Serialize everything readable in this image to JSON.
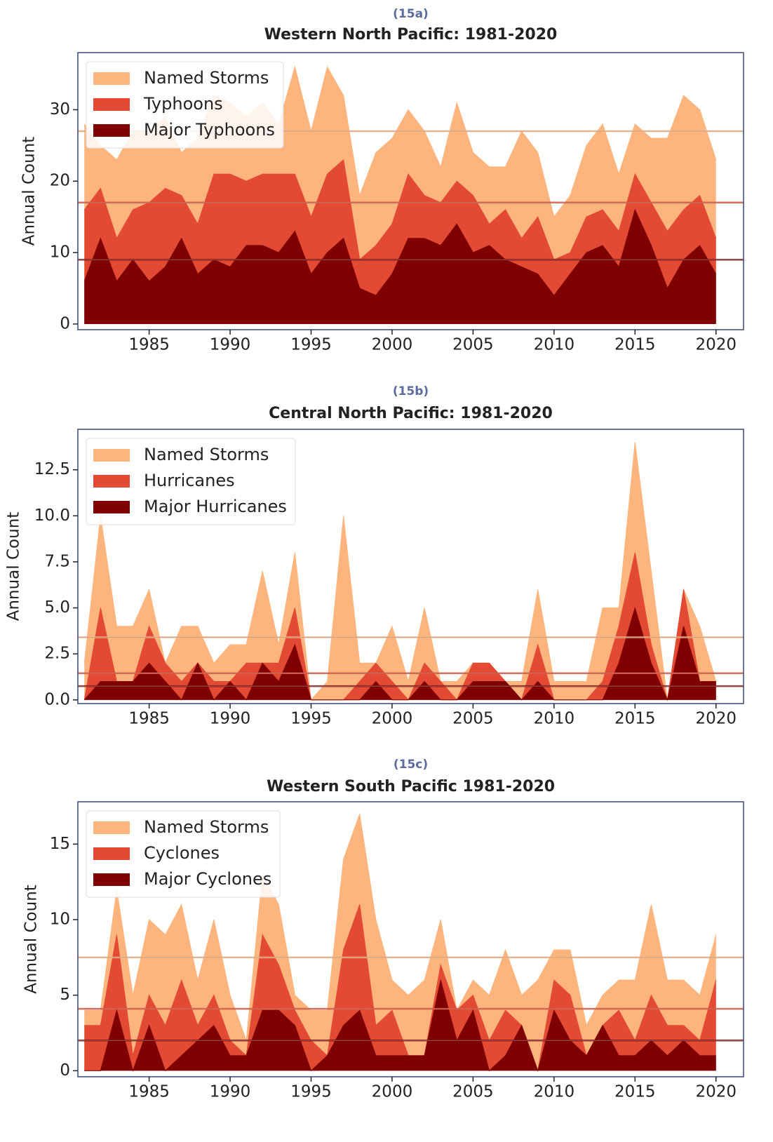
{
  "chart_data": [
    {
      "type": "area",
      "label": "(15a)",
      "title": "Western North Pacific: 1981-2020",
      "ylabel": "Annual Count",
      "legend": "upper left",
      "x": [
        1981,
        1982,
        1983,
        1984,
        1985,
        1986,
        1987,
        1988,
        1989,
        1990,
        1991,
        1992,
        1993,
        1994,
        1995,
        1996,
        1997,
        1998,
        1999,
        2000,
        2001,
        2002,
        2003,
        2004,
        2005,
        2006,
        2007,
        2008,
        2009,
        2010,
        2011,
        2012,
        2013,
        2014,
        2015,
        2016,
        2017,
        2018,
        2019,
        2020
      ],
      "xlim": [
        1980.6,
        2021.7
      ],
      "xticks": [
        1985,
        1990,
        1995,
        2000,
        2005,
        2010,
        2015,
        2020
      ],
      "ylim": [
        -0.8,
        38
      ],
      "yticks": [
        0,
        10,
        20,
        30
      ],
      "series": [
        {
          "name": "Named Storms",
          "color": "#fdb47d",
          "mean": 27,
          "values": [
            28,
            25,
            23,
            27,
            27,
            29,
            24,
            26,
            32,
            31,
            29,
            31,
            28,
            36,
            27,
            36,
            32,
            18,
            24,
            26,
            30,
            27,
            22,
            31,
            24,
            22,
            22,
            27,
            24,
            15,
            18,
            25,
            28,
            21,
            28,
            26,
            26,
            32,
            30,
            23
          ]
        },
        {
          "name": "Typhoons",
          "color": "#e34a33",
          "mean": 17,
          "values": [
            16,
            19,
            12,
            16,
            17,
            19,
            18,
            14,
            21,
            21,
            20,
            21,
            21,
            21,
            15,
            21,
            23,
            9,
            11,
            14,
            21,
            18,
            17,
            20,
            18,
            14,
            16,
            12,
            15,
            9,
            10,
            15,
            16,
            13,
            21,
            17,
            13,
            16,
            18,
            12
          ]
        },
        {
          "name": "Major Typhoons",
          "color": "#7f0000",
          "mean": 9,
          "values": [
            6,
            12,
            6,
            9,
            6,
            8,
            12,
            7,
            9,
            8,
            11,
            11,
            10,
            13,
            7,
            10,
            12,
            5,
            4,
            7,
            12,
            12,
            11,
            14,
            10,
            11,
            9,
            8,
            7,
            4,
            7,
            10,
            11,
            8,
            16,
            11,
            5,
            9,
            11,
            7
          ]
        }
      ]
    },
    {
      "type": "area",
      "label": "(15b)",
      "title": "Central North Pacific: 1981-2020",
      "ylabel": "Annual Count",
      "legend": "upper left",
      "x": [
        1981,
        1982,
        1983,
        1984,
        1985,
        1986,
        1987,
        1988,
        1989,
        1990,
        1991,
        1992,
        1993,
        1994,
        1995,
        1996,
        1997,
        1998,
        1999,
        2000,
        2001,
        2002,
        2003,
        2004,
        2005,
        2006,
        2007,
        2008,
        2009,
        2010,
        2011,
        2012,
        2013,
        2014,
        2015,
        2016,
        2017,
        2018,
        2019,
        2020
      ],
      "xlim": [
        1980.6,
        2021.7
      ],
      "xticks": [
        1985,
        1990,
        1995,
        2000,
        2005,
        2010,
        2015,
        2020
      ],
      "ylim": [
        -0.2,
        14.7
      ],
      "yticks": [
        {
          "value": 0,
          "label": "0.0"
        },
        2.5,
        {
          "value": 5,
          "label": "5.0"
        },
        7.5,
        {
          "value": 10,
          "label": "10.0"
        },
        12.5
      ],
      "series": [
        {
          "name": "Named Storms",
          "color": "#fdb47d",
          "mean": 3.4,
          "values": [
            2,
            10,
            4,
            4,
            6,
            2,
            4,
            4,
            2,
            3,
            3,
            7,
            3,
            8,
            0,
            1,
            10,
            2,
            2,
            4,
            1,
            5,
            1,
            1,
            2,
            2,
            1,
            1,
            6,
            1,
            1,
            1,
            5,
            5,
            14,
            7,
            0,
            6,
            4,
            1
          ]
        },
        {
          "name": "Hurricanes",
          "color": "#e34a33",
          "mean": 1.45,
          "values": [
            0,
            5,
            1,
            1,
            4,
            2,
            1,
            2,
            1,
            1,
            2,
            2,
            2,
            5,
            0,
            0,
            0,
            1,
            2,
            1,
            0,
            2,
            1,
            0,
            2,
            2,
            1,
            0,
            3,
            0,
            0,
            0,
            1,
            4,
            8,
            3,
            0,
            6,
            1,
            1
          ]
        },
        {
          "name": "Major Hurricanes",
          "color": "#7f0000",
          "mean": 0.75,
          "values": [
            0,
            1,
            1,
            1,
            2,
            1,
            0,
            2,
            0,
            1,
            0,
            2,
            1,
            3,
            0,
            0,
            0,
            0,
            1,
            0,
            0,
            1,
            0,
            0,
            1,
            1,
            1,
            0,
            1,
            0,
            0,
            0,
            0,
            2,
            5,
            2,
            0,
            4,
            1,
            1
          ]
        }
      ]
    },
    {
      "type": "area",
      "label": "(15c)",
      "title": "Western South Pacific 1981-2020",
      "ylabel": "Annual Count",
      "legend": "upper left",
      "x": [
        1981,
        1982,
        1983,
        1984,
        1985,
        1986,
        1987,
        1988,
        1989,
        1990,
        1991,
        1992,
        1993,
        1994,
        1995,
        1996,
        1997,
        1998,
        1999,
        2000,
        2001,
        2002,
        2003,
        2004,
        2005,
        2006,
        2007,
        2008,
        2009,
        2010,
        2011,
        2012,
        2013,
        2014,
        2015,
        2016,
        2017,
        2018,
        2019,
        2020
      ],
      "xlim": [
        1980.6,
        2021.7
      ],
      "xticks": [
        1985,
        1990,
        1995,
        2000,
        2005,
        2010,
        2015,
        2020
      ],
      "ylim": [
        -0.4,
        17.8
      ],
      "yticks": [
        0,
        5,
        10,
        15
      ],
      "series": [
        {
          "name": "Named Storms",
          "color": "#fdb47d",
          "mean": 7.5,
          "values": [
            4,
            4,
            12,
            5,
            10,
            9,
            11,
            6,
            10,
            5,
            2,
            13,
            11,
            5,
            4,
            4,
            14,
            17,
            10,
            6,
            5,
            6,
            10,
            4,
            6,
            5,
            8,
            5,
            6,
            8,
            8,
            3,
            5,
            6,
            6,
            11,
            6,
            6,
            5,
            9
          ]
        },
        {
          "name": "Cyclones",
          "color": "#e34a33",
          "mean": 4.1,
          "values": [
            3,
            3,
            9,
            1,
            5,
            3,
            6,
            3,
            5,
            2,
            1,
            9,
            7,
            4,
            2,
            1,
            8,
            11,
            3,
            4,
            1,
            1,
            7,
            4,
            5,
            2,
            4,
            3,
            0,
            6,
            5,
            1,
            3,
            4,
            2,
            5,
            3,
            3,
            2,
            6
          ]
        },
        {
          "name": "Major Cyclones",
          "color": "#7f0000",
          "mean": 2.0,
          "values": [
            0,
            0,
            4,
            0,
            3,
            0,
            1,
            2,
            3,
            1,
            1,
            4,
            4,
            3,
            0,
            1,
            3,
            4,
            1,
            1,
            1,
            1,
            6,
            2,
            4,
            0,
            1,
            3,
            0,
            4,
            2,
            1,
            3,
            1,
            1,
            2,
            1,
            2,
            1,
            1
          ]
        }
      ]
    }
  ]
}
